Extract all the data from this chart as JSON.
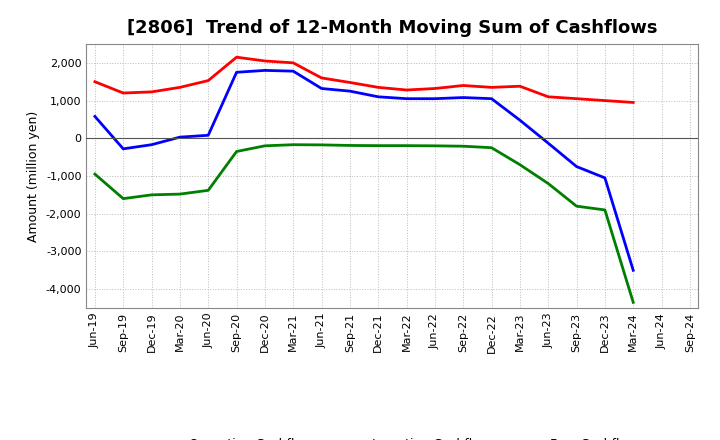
{
  "title": "[2806]  Trend of 12-Month Moving Sum of Cashflows",
  "ylabel": "Amount (million yen)",
  "background_color": "#ffffff",
  "plot_background_color": "#ffffff",
  "grid_color": "#bbbbbb",
  "x_labels": [
    "Jun-19",
    "Sep-19",
    "Dec-19",
    "Mar-20",
    "Jun-20",
    "Sep-20",
    "Dec-20",
    "Mar-21",
    "Jun-21",
    "Sep-21",
    "Dec-21",
    "Mar-22",
    "Jun-22",
    "Sep-22",
    "Dec-22",
    "Mar-23",
    "Jun-23",
    "Sep-23",
    "Dec-23",
    "Mar-24",
    "Jun-24",
    "Sep-24"
  ],
  "operating_cashflow": [
    1500,
    1200,
    1230,
    1350,
    1530,
    2150,
    2050,
    2000,
    1600,
    1480,
    1350,
    1280,
    1320,
    1400,
    1350,
    1380,
    1100,
    1050,
    1000,
    950,
    null,
    null
  ],
  "investing_cashflow": [
    -950,
    -1600,
    -1500,
    -1480,
    -1380,
    -350,
    -200,
    -170,
    -175,
    -190,
    -195,
    -195,
    -200,
    -210,
    -250,
    -700,
    -1200,
    -1800,
    -1900,
    -4350,
    null,
    null
  ],
  "free_cashflow": [
    580,
    -280,
    -170,
    30,
    80,
    1750,
    1800,
    1780,
    1320,
    1250,
    1100,
    1050,
    1050,
    1080,
    1050,
    480,
    -130,
    -750,
    -1050,
    -3500,
    null,
    null
  ],
  "ylim": [
    -4500,
    2500
  ],
  "yticks": [
    -4000,
    -3000,
    -2000,
    -1000,
    0,
    1000,
    2000
  ],
  "line_colors": {
    "operating": "#ff0000",
    "investing": "#008000",
    "free": "#0000ff"
  },
  "line_width": 2.0,
  "title_fontsize": 13,
  "tick_fontsize": 8,
  "ylabel_fontsize": 9,
  "legend_fontsize": 9
}
